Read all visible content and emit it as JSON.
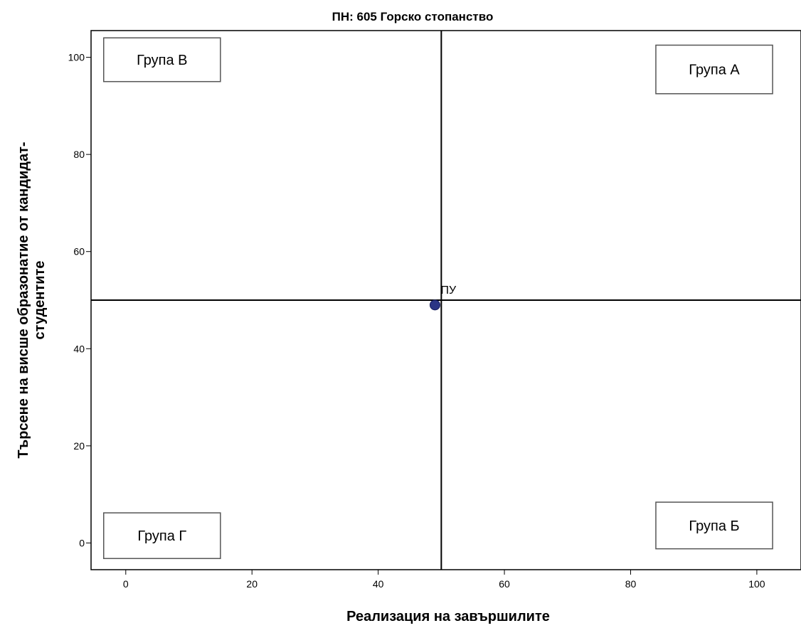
{
  "chart_data": {
    "type": "scatter",
    "title": "ПН: 605 Горско стопанство",
    "xlabel": "Реализация на завършилите",
    "ylabel_line1": "Търсене на висше образонатие от кандидат-",
    "ylabel_line2": "студентите",
    "xlim": [
      -5.5,
      107
    ],
    "ylim": [
      -5.5,
      105.5
    ],
    "x_ticks": [
      0,
      20,
      40,
      60,
      80,
      100
    ],
    "y_ticks": [
      0,
      20,
      40,
      60,
      80,
      100
    ],
    "grid": false,
    "reference_lines": {
      "x": 50,
      "y": 50
    },
    "points": [
      {
        "x": 49,
        "y": 49,
        "label": "ПУ"
      }
    ],
    "point_color": "#2b3585",
    "quadrant_labels": [
      {
        "id": "group-b",
        "text": "Група В",
        "x_range": [
          -3.5,
          15
        ],
        "y_range": [
          95,
          104
        ]
      },
      {
        "id": "group-a",
        "text": "Група А",
        "x_range": [
          84,
          102.5
        ],
        "y_range": [
          92.5,
          102.5
        ]
      },
      {
        "id": "group-g",
        "text": "Група Г",
        "x_range": [
          -3.5,
          15
        ],
        "y_range": [
          -3.2,
          6.2
        ]
      },
      {
        "id": "group-bb",
        "text": "Група Б",
        "x_range": [
          84,
          102.5
        ],
        "y_range": [
          -1.2,
          8.4
        ]
      }
    ]
  }
}
